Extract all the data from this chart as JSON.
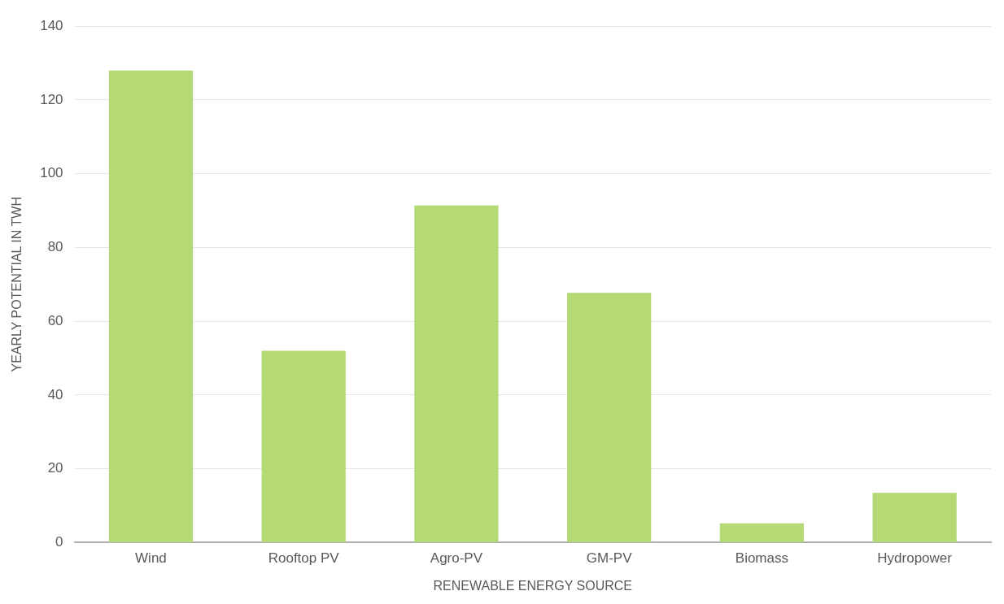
{
  "chart_data": {
    "type": "bar",
    "xlabel": "RENEWABLE ENERGY SOURCE",
    "ylabel": "YEARLY POTENTIAL IN TWH",
    "categories": [
      "Wind",
      "Rooftop PV",
      "Agro-PV",
      "GM-PV",
      "Biomass",
      "Hydropower"
    ],
    "values": [
      128,
      52,
      91.4,
      67.7,
      5.2,
      13.5
    ],
    "color": "#b5d974",
    "ylim": [
      0,
      140
    ],
    "yticks": [
      0,
      20,
      40,
      60,
      80,
      100,
      120,
      140
    ],
    "grid": "y",
    "legend": false
  }
}
